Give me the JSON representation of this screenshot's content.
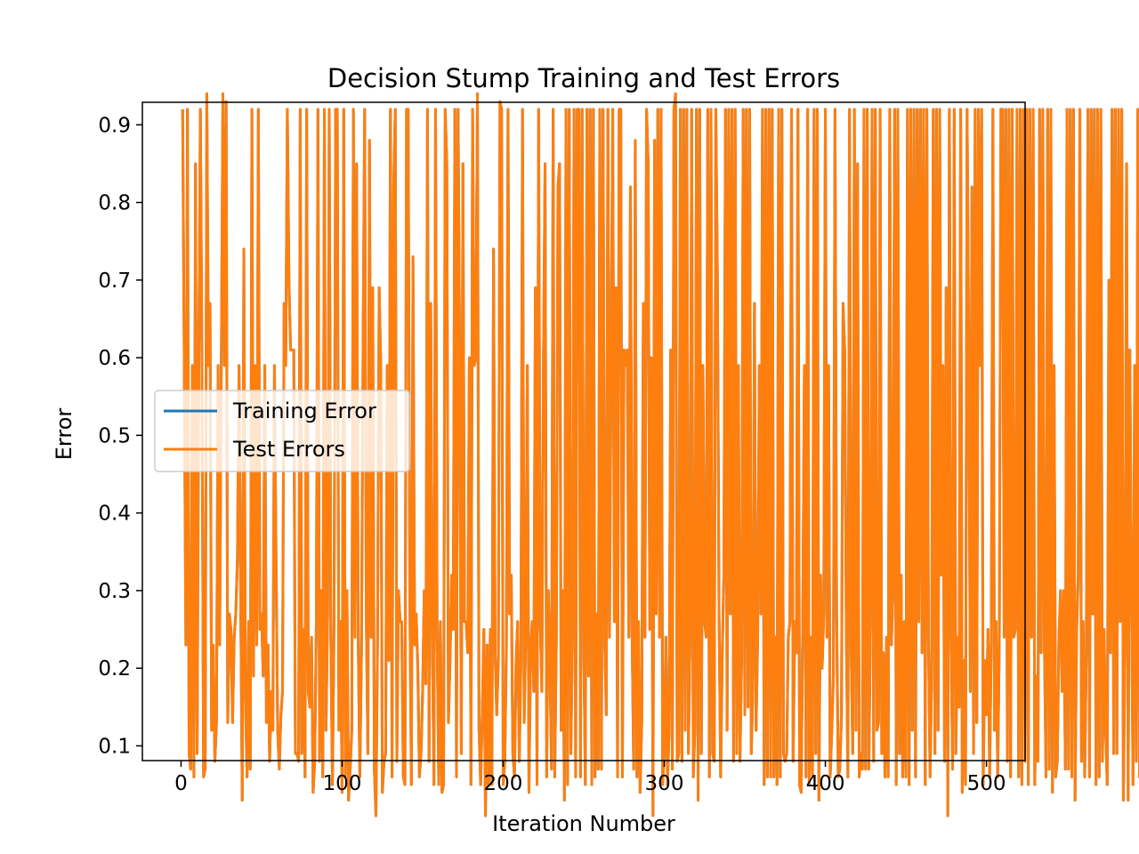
{
  "chart_data": {
    "type": "line",
    "title": "Decision Stump Training and Test Errors",
    "xlabel": "Iteration Number",
    "ylabel": "Error",
    "xlim": [
      -24,
      524
    ],
    "ylim": [
      0.081,
      0.929
    ],
    "xticks": [
      0,
      100,
      200,
      300,
      400,
      500
    ],
    "yticks": [
      0.1,
      0.2,
      0.3,
      0.4,
      0.5,
      0.6,
      0.7,
      0.8,
      0.9
    ],
    "grid": false,
    "legend": "center-left",
    "x": {
      "start": 1,
      "end": 500,
      "step": 1
    },
    "series": [
      {
        "name": "Training Error",
        "color": "#1f77b4",
        "values_compact": "|[7|)'[&u)[|[&'~[c,7(-[7[~[}-;9-8;B[>#j0&:'|3[7|9;3[-7(1,[B,'.1c[|f]]]))(|)9&|1/8$(:|(>&|,;|8%:||,:$|&>#',|8u8&6]|;)x8e'!8e[$()[5|&r|(>::&%||>%i7;4&)1>2|(c9%|8%:$%|u-5@9|&|[)u::6\\%|[\\~,%.9!7%9%j6.5}|%(7|;@)&5:(5|-8[$6:1e%|:1[u&>5'|&8ru,>#|%|)8|&||&|8%|3|%|&;'|'|8.|8]|:e&||&][]8r9'x&:$-c8|u9\\!x;|8|%)8%,]'|~()|(|,|)8|&,|#|)[:8|&|)(|f;&6@|,|;|(|)[(5|.|/|)1c,8[;|%|&|&|&8%|&|)()8:|(:6|%$;[&|%8&|)|#@4;|8[&,3|;&'.c]9&|7)|,u&)'|'|':|(|,-|)6&8&|7>|%|)@&:&|%|,|&|:|6|%|8&3|)|,|@[(e!|8'|)8/|$5%|]1r)|-|[|%5.9&8|,:&8||8|(|&|89|&|%|(|%|8|%3(|6|7&|'|$[&(8>1>'|'|&|#9@|(:&6|&|;|%|&|(9,%f6|)|)|:|#6u#]@%[(|&8;|#|[|9u;|%|)'[&e9%9&|;|%|#8&|(>|3|#|7|&|%|%|6e8.:5|8|]',|,|$|'|5|&|)|#|'[,|&|7|&|,|)|)|,|&|'8:[%7[&|[-|'8&8(][?>/\\$[9@&|(|;@3|%|/|,|&|>6[;|%[%:>%|)|8|&8|;|%|2|%1)f,|,|$$'|&]#}%u7:!#|8\\,1::-|%)j:5|&5#[&8)[(x/r|;:''|$/@'|89(7;-||9>[@-)7<$;|%:|@!|/%:c'|(7(/|)8:[%-?9u%|['-7|)[;|&|(&'[|j[)|6'|&|]|/;-8|$|/|:|)|(8&8)|&|7|6|&|:|%|;|'|6|/|'|;|(|(|8@|(;9]>&:7;x%)|&|8|8|[|&|,5|,|-|'|:|8|(|,|%6(|,|6|)[&|(6|&|/|&|/2.~:3|,|'[?8e[-|/9>|4|&|5;-|(|:|@:1|)|;|9|)c>:[@-5|(|%|(@:.r:9i'9,|,|/|&8)|$|'|%8)|7|\\&|&|,6|)8&8||&]&|$)]#||.8|(|#u-98;-|&|'8f;'|,|/@~'6|%|5|$;&|(u%|:c8.|&]&8&|-,8#%|]|%9-,1[9x)|;|(|/[$6-u&|(|#|;8;|:|&|4,|]|9||%6&8%|,|/|(1]/[&-)[(j:c[%8-:|8#)u;)|;|&}|%|8.|6?,,>\\%|$:.|8%|%8|(.|8|3|&e#|(5%|3[&|&e$8(|%e&&u]c)|)j6'|5|-r,@,]!|'-}86|&|)|#|/8&&5|'[&e)e;7(r7|%-|*[&'|:x)|%6&|(|%9&\\2:c)|-[3r@)|;,|8'j'$x(|(|7;'|#x%~-|6&:;)8(|%|:j|%9&|1[):5"
      },
      {
        "name": "Test Errors",
        "color": "#ff7f0e",
        "values_compact": "|[7|)'[&u)[|[&'~[c,7(-[7[~[}-;9-8;B[>#j0&:'|3[7|9;3[-7(1,[B,'.1c[|f]]]))(|)9&|1/8$(:|(>&|,;|8%:||,:$|&>#',|8u8&6]|;)x8e'!8e[$()[5|&r|(>::&%||>%i7;4&)1>2|(c9%|8%:$%|u-5@9|&|[)u::6\\%|[\\~,%.9!7%9%j6.5}|%(7|;@)&5:(5|-8[$6:1e%|:1[u&>5'|&8ru,>#|%|)8|&||&|8%|3|%|&;'|'|8.|8]|:e&||&][]8r9'x&:$-c8|u9\\!x;|8|%)8%,]'|~()|(|,|)8|&,|#|)[:8|&|)(|f;&6@|,|;|(|)[(5|.|/|)1c,8[;|%|&|&|&8%|&|)()8:|(:6|%$;[&|%8&|)|#@4;|8[&,3|;&'.c]9&|7)|,u&)'|'|':|(|,-|)6&8&|7>|%|)@&:&|%|,|&|:|6|%|8&3|)|,|@[(e!|8'|)8/|$5%|]1r)|-|[|%5.9&8|,:&8||8|(|&|89|&|%|(|%|8|%3(|6|7&|'|$[&(8>1>'|'|&|#9@|(:&6|&|;|%|&|(9,%f6|)|)|:|#6u#]@%[(|&8;|#|[|9u;|%|)'[&e9%9&|;|%|#8&|(>|3|#|7|&|%|%|6e8.:5|8|]',|,|$|'|5|&|)|#|'[,|&|7|&|,|)|)|,|&|'8:[%7[&|[-|'8&8(][?>/\\$[9@&|(|;@3|%|/|,|&|>6[;|%[%:>%|)|8|&8|;|%|2|%1)f,|,|$$'|&]#}%u7:!#|8\\,1::-|%)j:5|&5#[&8)[(x/r|;:''|$/@'|89(7;-||9>[@-)7<$;|%:|@!|/%:c'|(7(/|)8:[%-?9u%|['-7|)[;|&|(&'[|j[)|6'|&|]|/;-8|$|/|:|)|(8&8)|&|7|6|&|:|%|;|'|6|/|'|;|(|(|8@|(;9]>&:7;x%)|&|8|8|[|&|,5|,|-|'|:|8|(|,|%6(|,|6|)[&|(6|&|/|&|/2.~:3|,|'[?8e[-|/9>|4|&|5;-|(|:|@:1|)|;|9|)c>:[@-5|(|%|(@:.r:9i'9,|,|/|&8)|$|'|%8)|7|\\&|&|,6|)8&8||&]&|$)]#||.8|(|#u-98;-|&|'8f;'|,|/@~'6|%|5|$;&|(u%|:c8.|&]&8&|-,8#%|]|%9-,1[9x)|;|(|/[$6-u&|(|#|;8;|:|&|4,|]|9||%6&8%|,|/|(1]/[&-)[(j:c[%8-:|8#)u;)|;|&}|%|8.|6?,,>\\%|$:.|8%|%8|(.|8|3|&e#|(5%|3[&|&e$8(|%e&&u]c)|)j6'|5|-r,@,]!|'-}86|&|)|#|/8&&5|'[&e)e;7(r7|%-|*[&'|:x)|%6&|(|%9&\\2:c)|-[3r@)|;,|8'j'$x(|(|7;'|#x%~-|6&:;)8(|%|:j|%9&|1[):5"
      }
    ]
  }
}
